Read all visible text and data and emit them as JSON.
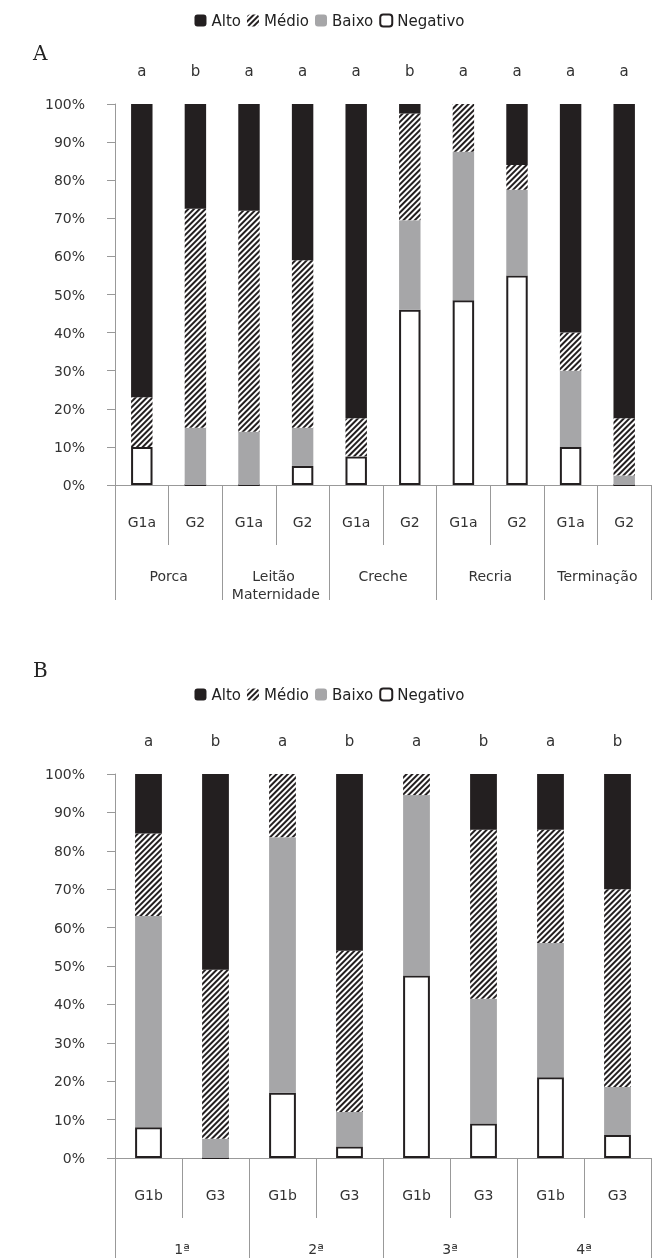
{
  "chart_data": [
    {
      "type": "bar",
      "title": "A",
      "stacked": true,
      "legend": "top",
      "grid": false,
      "categories": [
        "G1a",
        "G2",
        "G1a",
        "G2",
        "G1a",
        "G2",
        "G1a",
        "G2",
        "G1a",
        "G2"
      ],
      "annotations": [
        "a",
        "b",
        "a",
        "a",
        "a",
        "b",
        "a",
        "a",
        "a",
        "a",
        "Porca",
        "Leitão Maternidade",
        "Creche",
        "Recria",
        "Terminação"
      ],
      "ylim": [
        0,
        100
      ],
      "yticks": [
        {
          "value": 0,
          "label": "0%"
        },
        {
          "value": 10,
          "label": "10%"
        },
        {
          "value": 20,
          "label": "20%"
        },
        {
          "value": 30,
          "label": "30%"
        },
        {
          "value": 40,
          "label": "40%"
        },
        {
          "value": 50,
          "label": "50%"
        },
        {
          "value": 60,
          "label": "60%"
        },
        {
          "value": 70,
          "label": "70%"
        },
        {
          "value": 80,
          "label": "80%"
        },
        {
          "value": 90,
          "label": "90%"
        },
        {
          "value": 100,
          "label": "100%"
        }
      ],
      "series": [
        {
          "name": "Negativo",
          "color": "#ffffff",
          "values": [
            10,
            0,
            0,
            5,
            7.5,
            46,
            48.5,
            55,
            10,
            0
          ]
        },
        {
          "name": "Baixo",
          "color": "#a6a6a8",
          "values": [
            0,
            15,
            14,
            10,
            0,
            23.5,
            39,
            22.5,
            20,
            2.5
          ]
        },
        {
          "name": "Médio",
          "color": "#231f20",
          "values": [
            13,
            57.5,
            58,
            44,
            10,
            28,
            12.5,
            6.5,
            10,
            15
          ]
        },
        {
          "name": "Alto",
          "color": "#231f20",
          "values": [
            77,
            27.5,
            28,
            41,
            82.5,
            2.5,
            0,
            16,
            60,
            82.5
          ]
        }
      ]
    },
    {
      "type": "bar",
      "title": "B",
      "stacked": true,
      "legend": "top",
      "grid": false,
      "categories": [
        "G1b",
        "G3",
        "G1b",
        "G3",
        "G1b",
        "G3",
        "G1b",
        "G3"
      ],
      "annotations": [
        "a",
        "b",
        "a",
        "b",
        "a",
        "b",
        "a",
        "b",
        "1ª",
        "2ª",
        "3ª",
        "4ª"
      ],
      "ylim": [
        0,
        100
      ],
      "yticks": [
        {
          "value": 0,
          "label": "0%"
        },
        {
          "value": 10,
          "label": "10%"
        },
        {
          "value": 20,
          "label": "20%"
        },
        {
          "value": 30,
          "label": "30%"
        },
        {
          "value": 40,
          "label": "40%"
        },
        {
          "value": 50,
          "label": "50%"
        },
        {
          "value": 60,
          "label": "60%"
        },
        {
          "value": 70,
          "label": "70%"
        },
        {
          "value": 80,
          "label": "80%"
        },
        {
          "value": 90,
          "label": "90%"
        },
        {
          "value": 100,
          "label": "100%"
        }
      ],
      "series": [
        {
          "name": "Negativo",
          "color": "#ffffff",
          "values": [
            8,
            0,
            17,
            3,
            47.5,
            9,
            21,
            6
          ]
        },
        {
          "name": "Baixo",
          "color": "#a6a6a8",
          "values": [
            55,
            5,
            66.5,
            9,
            47,
            32.5,
            35,
            12.5
          ]
        },
        {
          "name": "Médio",
          "color": "#231f20",
          "values": [
            21.5,
            44,
            16.5,
            42,
            5.5,
            44,
            29.5,
            51.5
          ]
        },
        {
          "name": "Alto",
          "color": "#231f20",
          "values": [
            15.5,
            51,
            0,
            46,
            0,
            14.5,
            14.5,
            30
          ]
        }
      ]
    }
  ]
}
